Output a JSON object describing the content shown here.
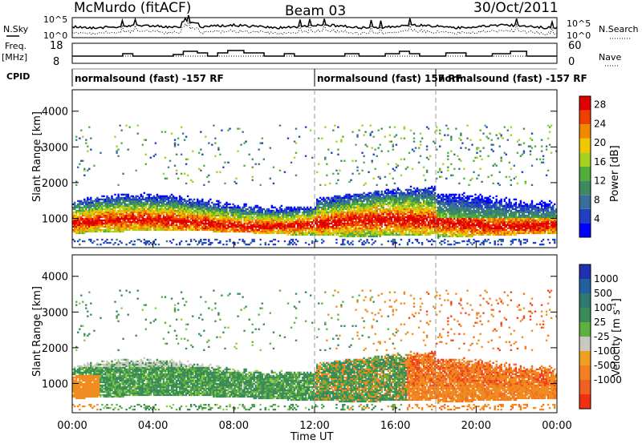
{
  "header": {
    "station": "McMurdo (fitACF)",
    "beam": "Beam 03",
    "date": "30/Oct/2011"
  },
  "labels": {
    "nsky": "N.Sky",
    "nsearch": "N.Search",
    "freq_line1": "Freq.",
    "freq_line2": "[MHz]",
    "nave": "Nave",
    "cpid": "CPID"
  },
  "noise_axis": {
    "top_left": "10^5",
    "bottom_left": "10^0",
    "top_right": "10^5",
    "bottom_right": "10^0"
  },
  "freq_axis": {
    "top_left": "18",
    "bottom_left": "8",
    "top_right": "60",
    "bottom_right": "0"
  },
  "cpid_segments": [
    {
      "label": "normalsound (fast) -157 RF",
      "start_hour": 0
    },
    {
      "label": "normalsound (fast) 157 RF",
      "start_hour": 12
    },
    {
      "label": "normalsound (fast) -157 RF",
      "start_hour": 18
    }
  ],
  "chart_data": [
    {
      "type": "heatmap",
      "name": "power",
      "xlabel": "",
      "ylabel": "Slant Range [km]",
      "xlim": [
        0,
        24
      ],
      "ylim": [
        180,
        4600
      ],
      "yticks": [
        1000,
        2000,
        3000,
        4000
      ],
      "colorbar": {
        "label": "Power [dB]",
        "ticks": [
          "4",
          "8",
          "12",
          "16",
          "20",
          "24",
          "28"
        ],
        "range": [
          0,
          30
        ],
        "colors": [
          "#0000ff",
          "#2040c0",
          "#3a6e9a",
          "#3d8a5e",
          "#4fae3a",
          "#a8d020",
          "#f0c800",
          "#f08800",
          "#f04000",
          "#e00000"
        ]
      }
    },
    {
      "type": "heatmap",
      "name": "velocity",
      "xlabel": "Time UT",
      "ylabel": "Slant Range [km]",
      "xlim": [
        0,
        24
      ],
      "ylim": [
        180,
        4600
      ],
      "yticks": [
        1000,
        2000,
        3000,
        4000
      ],
      "xticks": [
        "00:00",
        "04:00",
        "08:00",
        "12:00",
        "16:00",
        "20:00",
        "00:00"
      ],
      "colorbar": {
        "label": "Velocity [m s^-1]",
        "ticks": [
          "1000",
          "500",
          "100",
          "25",
          "-25",
          "-100",
          "-500",
          "-1000"
        ],
        "colors": [
          "#2030b0",
          "#2060a0",
          "#2f7a70",
          "#3a8a5a",
          "#60b040",
          "#c8c8c0",
          "#f0a020",
          "#f08020",
          "#f06020",
          "#f03010"
        ]
      }
    }
  ]
}
